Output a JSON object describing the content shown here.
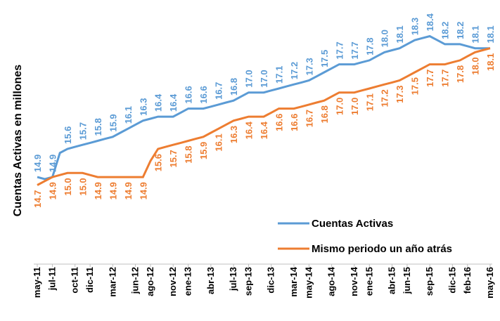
{
  "chart_data": {
    "type": "line",
    "y_label": "Cuentas Activas en millones",
    "categories": [
      "may-11",
      null,
      "jul-11",
      null,
      null,
      "oct-11",
      null,
      "dic-11",
      null,
      null,
      "mar-12",
      null,
      null,
      "jun-12",
      null,
      "ago-12",
      null,
      null,
      "nov-12",
      null,
      "ene-13",
      null,
      null,
      "abr-13",
      null,
      null,
      "jul-13",
      null,
      "sep-13",
      null,
      null,
      "dic-13",
      null,
      null,
      "mar-14",
      null,
      "may-14",
      null,
      null,
      "ago-14",
      null,
      null,
      "nov-14",
      null,
      "ene-15",
      null,
      null,
      "abr-15",
      null,
      "jun-15",
      null,
      null,
      "sep-15",
      null,
      null,
      "dic-15",
      null,
      "feb-16",
      null,
      null,
      "may-16"
    ],
    "series": [
      {
        "name": "Cuentas Activas",
        "color": "#5b9bd5",
        "values": [
          14.9,
          14.85,
          14.9,
          15.5,
          15.6,
          15.65,
          15.7,
          15.75,
          15.8,
          15.85,
          15.9,
          16.0,
          16.1,
          16.2,
          16.3,
          16.35,
          16.4,
          16.4,
          16.4,
          16.5,
          16.6,
          16.6,
          16.6,
          16.65,
          16.7,
          16.75,
          16.8,
          16.9,
          17.0,
          17.0,
          17.0,
          17.05,
          17.1,
          17.15,
          17.2,
          17.25,
          17.3,
          17.4,
          17.5,
          17.6,
          17.7,
          17.7,
          17.7,
          17.75,
          17.8,
          17.9,
          18.0,
          18.05,
          18.1,
          18.2,
          18.3,
          18.35,
          18.4,
          18.3,
          18.2,
          18.2,
          18.2,
          18.15,
          18.1,
          18.1,
          18.1
        ],
        "value_labels": [
          "14.9",
          null,
          "14.9",
          null,
          "15.6",
          null,
          "15.7",
          null,
          "15.8",
          null,
          "15.9",
          null,
          "16.1",
          null,
          "16.3",
          null,
          "16.4",
          null,
          "16.4",
          null,
          "16.6",
          null,
          "16.6",
          null,
          "16.7",
          null,
          "16.8",
          null,
          "17.0",
          null,
          "17.0",
          null,
          "17.1",
          null,
          "17.2",
          null,
          "17.3",
          null,
          "17.5",
          null,
          "17.7",
          null,
          "17.7",
          null,
          "17.8",
          null,
          "18.0",
          null,
          "18.1",
          null,
          "18.3",
          null,
          "18.4",
          null,
          "18.2",
          null,
          "18.2",
          null,
          "18.1",
          null,
          "18.1"
        ]
      },
      {
        "name": "Mismo periodo un año atrás",
        "color": "#ed7d31",
        "values": [
          14.7,
          14.8,
          14.9,
          14.95,
          15.0,
          15.0,
          15.0,
          14.95,
          14.9,
          14.9,
          14.9,
          14.9,
          14.9,
          14.9,
          14.9,
          15.3,
          15.6,
          15.65,
          15.7,
          15.75,
          15.8,
          15.85,
          15.9,
          16.0,
          16.1,
          16.2,
          16.3,
          16.35,
          16.4,
          16.4,
          16.4,
          16.5,
          16.6,
          16.6,
          16.6,
          16.65,
          16.7,
          16.75,
          16.8,
          16.9,
          17.0,
          17.0,
          17.0,
          17.05,
          17.1,
          17.15,
          17.2,
          17.25,
          17.3,
          17.4,
          17.5,
          17.6,
          17.7,
          17.7,
          17.7,
          17.75,
          17.8,
          17.9,
          18.0,
          18.05,
          18.1
        ],
        "value_labels": [
          "14.7",
          null,
          "14.9",
          null,
          "15.0",
          null,
          "15.0",
          null,
          "14.9",
          null,
          "14.9",
          null,
          "14.9",
          null,
          "14.9",
          null,
          "15.6",
          null,
          "15.7",
          null,
          "15.8",
          null,
          "15.9",
          null,
          "16.1",
          null,
          "16.3",
          null,
          "16.4",
          null,
          "16.4",
          null,
          "16.6",
          null,
          "16.6",
          null,
          "16.7",
          null,
          "16.8",
          null,
          "17.0",
          null,
          "17.0",
          null,
          "17.1",
          null,
          "17.2",
          null,
          "17.3",
          null,
          "17.5",
          null,
          "17.7",
          null,
          "17.7",
          null,
          "17.8",
          null,
          "18.0",
          null,
          "18.1"
        ]
      }
    ],
    "ylim": [
      14.5,
      18.6
    ],
    "legend": "bottom-right"
  }
}
